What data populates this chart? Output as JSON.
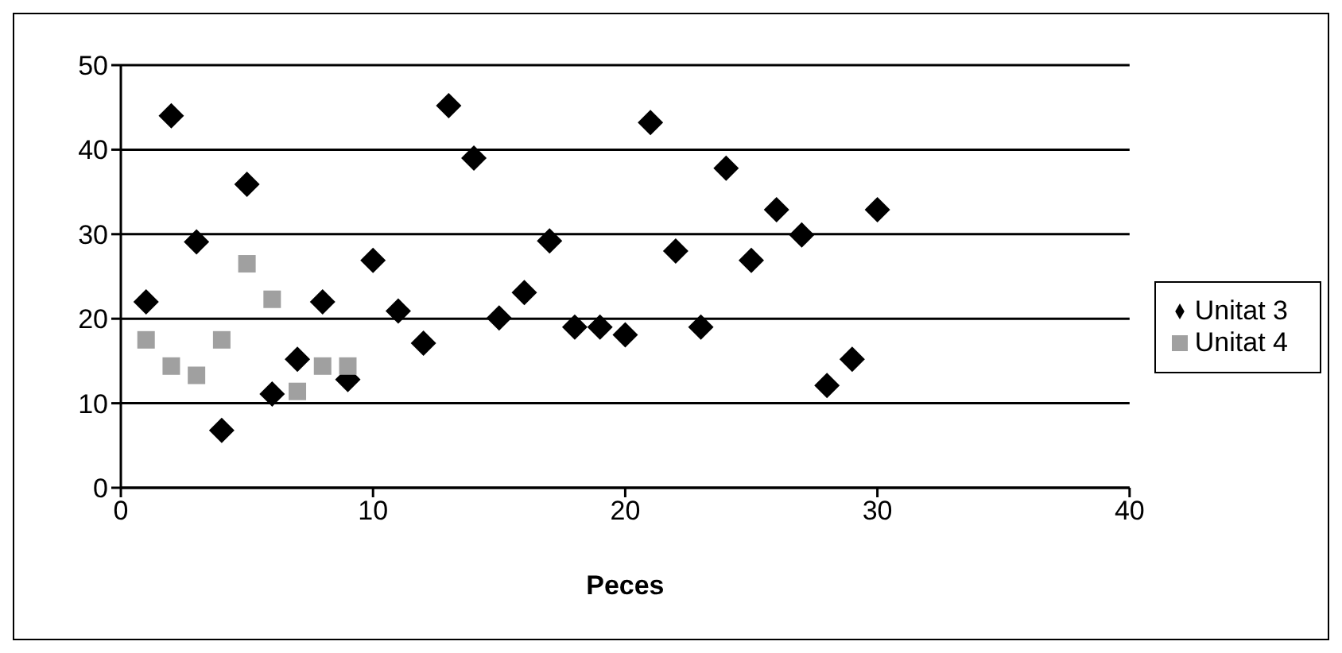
{
  "chart_data": {
    "type": "scatter",
    "xlabel": "Peces",
    "xlim": [
      0,
      40
    ],
    "xticks": [
      0,
      10,
      20,
      30,
      40
    ],
    "ylim": [
      0,
      50
    ],
    "yticks": [
      0,
      10,
      20,
      30,
      40,
      50
    ],
    "grid": "y",
    "legend": "right",
    "series": [
      {
        "name": "Unitat 3",
        "color": "#000000",
        "marker": "diamond",
        "x": [
          1,
          2,
          3,
          4,
          5,
          6,
          7,
          8,
          9,
          10,
          11,
          12,
          13,
          14,
          15,
          16,
          17,
          18,
          19,
          20,
          21,
          22,
          23,
          24,
          25,
          26,
          27,
          28,
          29,
          30
        ],
        "values": [
          22,
          44,
          29.1,
          6.8,
          35.9,
          11.1,
          15.2,
          22,
          12.8,
          26.9,
          20.9,
          17.1,
          45.2,
          39,
          20.1,
          23.1,
          29.2,
          19,
          19,
          18.1,
          43.2,
          28,
          19,
          37.8,
          26.9,
          32.9,
          29.9,
          12.1,
          15.2,
          32.9
        ]
      },
      {
        "name": "Unitat 4",
        "color": "#a0a0a0",
        "marker": "square",
        "x": [
          1,
          2,
          3,
          4,
          5,
          6,
          7,
          8,
          9
        ],
        "values": [
          17.5,
          14.4,
          13.3,
          17.5,
          26.5,
          22.3,
          11.4,
          14.4,
          14.4
        ]
      }
    ]
  }
}
